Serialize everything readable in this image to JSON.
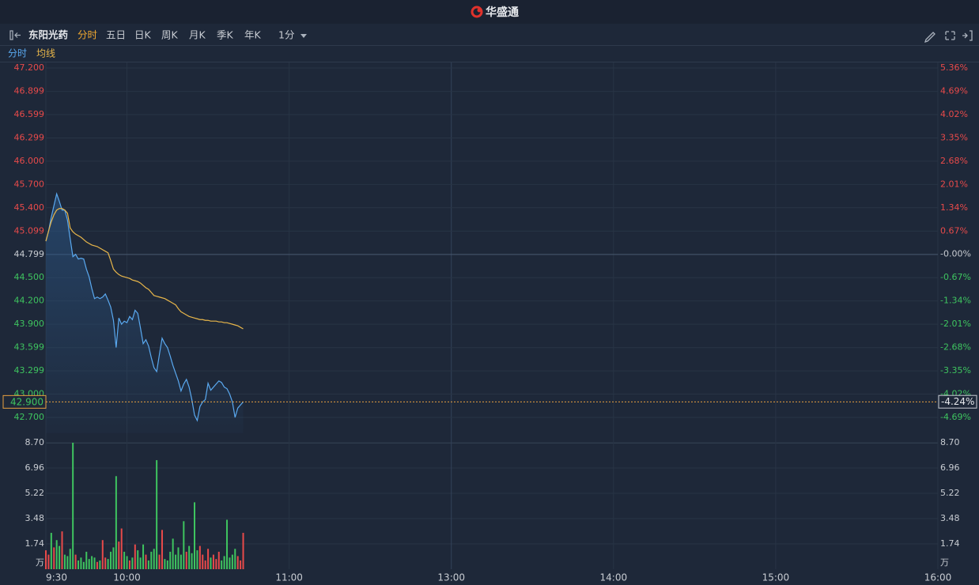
{
  "header": {
    "logo": "华盛通"
  },
  "toolbar": {
    "stock": "东阳光药",
    "tabs": [
      "分时",
      "五日",
      "日K",
      "周K",
      "月K",
      "季K",
      "年K"
    ],
    "interval": "1分"
  },
  "chart_data": [
    {
      "type": "line",
      "x": [
        0,
        1,
        2,
        3,
        4,
        5,
        6,
        7,
        8,
        9,
        10,
        11,
        12,
        13,
        14,
        15,
        16,
        17,
        18,
        19,
        20,
        21,
        22,
        23,
        24,
        25,
        26,
        27,
        28,
        29,
        30,
        31,
        32,
        33,
        34,
        35,
        36,
        37,
        38,
        39,
        40,
        41,
        42,
        43,
        44,
        45,
        46,
        47,
        48,
        49,
        50,
        51,
        52,
        53,
        54,
        55,
        56,
        57,
        58,
        59,
        60,
        61,
        62,
        63,
        64,
        65,
        66,
        67,
        68,
        69,
        70,
        71,
        72,
        73
      ],
      "series": [
        {
          "name": "分时",
          "color": "#5aa9f0",
          "values": [
            44.97,
            45.1,
            45.28,
            45.43,
            45.58,
            45.48,
            45.37,
            45.37,
            45.24,
            45.0,
            44.77,
            44.8,
            44.74,
            44.75,
            44.74,
            44.61,
            44.51,
            44.36,
            44.23,
            44.25,
            44.23,
            44.25,
            44.29,
            44.21,
            44.12,
            43.95,
            43.6,
            43.98,
            43.9,
            43.94,
            43.92,
            44.0,
            43.96,
            44.08,
            44.04,
            43.85,
            43.65,
            43.7,
            43.62,
            43.47,
            43.34,
            43.29,
            43.51,
            43.72,
            43.65,
            43.6,
            43.49,
            43.37,
            43.27,
            43.17,
            43.04,
            43.13,
            43.19,
            43.09,
            42.93,
            42.73,
            42.66,
            42.84,
            42.9,
            42.93,
            43.14,
            43.05,
            43.09,
            43.13,
            43.17,
            43.15,
            43.09,
            43.07,
            43.0,
            42.9,
            42.7,
            42.82,
            42.86,
            42.9
          ]
        },
        {
          "name": "均线",
          "color": "#e8b64a",
          "values": [
            44.97,
            45.1,
            45.22,
            45.31,
            45.37,
            45.39,
            45.39,
            45.37,
            45.33,
            45.14,
            45.09,
            45.06,
            45.04,
            45.02,
            44.99,
            44.96,
            44.94,
            44.92,
            44.91,
            44.9,
            44.88,
            44.86,
            44.84,
            44.82,
            44.72,
            44.61,
            44.57,
            44.54,
            44.52,
            44.51,
            44.5,
            44.49,
            44.47,
            44.46,
            44.45,
            44.43,
            44.4,
            44.37,
            44.35,
            44.31,
            44.27,
            44.26,
            44.25,
            44.24,
            44.23,
            44.21,
            44.19,
            44.17,
            44.15,
            44.1,
            44.06,
            44.04,
            44.02,
            44.0,
            43.99,
            43.98,
            43.97,
            43.96,
            43.96,
            43.95,
            43.95,
            43.94,
            43.94,
            43.94,
            43.93,
            43.93,
            43.92,
            43.92,
            43.91,
            43.9,
            43.89,
            43.88,
            43.86,
            43.84
          ]
        }
      ],
      "xlim": [
        0,
        330
      ],
      "ylim": [
        42.7,
        47.2
      ],
      "yticks": [
        {
          "value": 47.2,
          "label": "47.200"
        },
        {
          "value": 46.899,
          "label": "46.899"
        },
        {
          "value": 46.599,
          "label": "46.599"
        },
        {
          "value": 46.299,
          "label": "46.299"
        },
        {
          "value": 46.0,
          "label": "46.000"
        },
        {
          "value": 45.7,
          "label": "45.700"
        },
        {
          "value": 45.4,
          "label": "45.400"
        },
        {
          "value": 45.099,
          "label": "45.099"
        },
        {
          "value": 44.799,
          "label": "44.799"
        },
        {
          "value": 44.5,
          "label": "44.500"
        },
        {
          "value": 44.2,
          "label": "44.200"
        },
        {
          "value": 43.9,
          "label": "43.900"
        },
        {
          "value": 43.599,
          "label": "43.599"
        },
        {
          "value": 43.299,
          "label": "43.299"
        },
        {
          "value": 43.0,
          "label": "43.000"
        },
        {
          "value": 42.7,
          "label": "42.700"
        }
      ],
      "y2lim": [
        -4.69,
        5.36
      ],
      "y2ticks": [
        {
          "value": 5.36,
          "label": "5.36%"
        },
        {
          "value": 4.69,
          "label": "4.69%"
        },
        {
          "value": 4.02,
          "label": "4.02%"
        },
        {
          "value": 3.35,
          "label": "3.35%"
        },
        {
          "value": 2.68,
          "label": "2.68%"
        },
        {
          "value": 2.01,
          "label": "2.01%"
        },
        {
          "value": 1.34,
          "label": "1.34%"
        },
        {
          "value": 0.67,
          "label": "0.67%"
        },
        {
          "value": 0,
          "label": "-0.00%"
        },
        {
          "value": -0.67,
          "label": "-0.67%"
        },
        {
          "value": -1.34,
          "label": "-1.34%"
        },
        {
          "value": -2.01,
          "label": "-2.01%"
        },
        {
          "value": -2.68,
          "label": "-2.68%"
        },
        {
          "value": -3.35,
          "label": "-3.35%"
        },
        {
          "value": -4.02,
          "label": "-4.02%"
        },
        {
          "value": -4.69,
          "label": "-4.69%"
        }
      ],
      "base_price": 44.799,
      "last_price": {
        "value": 42.9,
        "label": "42.900"
      },
      "last_change": {
        "value": -4.24,
        "label": "-4.24%"
      },
      "up_color": "#e84a4a",
      "down_color": "#3ec45f",
      "flat_color": "#c8ccd2",
      "grid": true
    },
    {
      "type": "bar",
      "x": [
        0,
        1,
        2,
        3,
        4,
        5,
        6,
        7,
        8,
        9,
        10,
        11,
        12,
        13,
        14,
        15,
        16,
        17,
        18,
        19,
        20,
        21,
        22,
        23,
        24,
        25,
        26,
        27,
        28,
        29,
        30,
        31,
        32,
        33,
        34,
        35,
        36,
        37,
        38,
        39,
        40,
        41,
        42,
        43,
        44,
        45,
        46,
        47,
        48,
        49,
        50,
        51,
        52,
        53,
        54,
        55,
        56,
        57,
        58,
        59,
        60,
        61,
        62,
        63,
        64,
        65,
        66,
        67,
        68,
        69,
        70,
        71,
        72,
        73
      ],
      "values": [
        1.3,
        1.0,
        2.5,
        1.5,
        2.0,
        1.6,
        2.6,
        1.0,
        0.9,
        1.4,
        8.7,
        1.0,
        0.6,
        0.8,
        0.5,
        1.2,
        0.7,
        0.9,
        0.8,
        0.5,
        0.6,
        2.0,
        0.8,
        0.7,
        1.2,
        1.5,
        6.4,
        1.9,
        2.8,
        1.2,
        0.9,
        0.6,
        0.8,
        1.7,
        1.3,
        0.8,
        1.7,
        1.0,
        0.6,
        1.2,
        1.4,
        7.5,
        1.0,
        2.7,
        0.7,
        0.6,
        1.2,
        2.1,
        1.0,
        1.5,
        1.0,
        3.3,
        1.2,
        1.6,
        1.1,
        4.6,
        1.3,
        1.6,
        1.0,
        0.6,
        1.4,
        0.8,
        1.0,
        0.7,
        1.2,
        0.6,
        0.9,
        3.4,
        0.8,
        1.0,
        1.4,
        0.9,
        0.6,
        2.5
      ],
      "bar_colors": [
        "#e84a4a",
        "#e84a4a",
        "#3ec45f",
        "#e84a4a",
        "#3ec45f",
        "#3ec45f",
        "#e84a4a",
        "#3ec45f",
        "#3ec45f",
        "#3ec45f",
        "#3ec45f",
        "#e84a4a",
        "#3ec45f",
        "#3ec45f",
        "#3ec45f",
        "#3ec45f",
        "#3ec45f",
        "#3ec45f",
        "#3ec45f",
        "#e84a4a",
        "#3ec45f",
        "#e84a4a",
        "#e84a4a",
        "#3ec45f",
        "#3ec45f",
        "#3ec45f",
        "#3ec45f",
        "#e84a4a",
        "#e84a4a",
        "#3ec45f",
        "#3ec45f",
        "#e84a4a",
        "#3ec45f",
        "#e84a4a",
        "#3ec45f",
        "#3ec45f",
        "#3ec45f",
        "#e84a4a",
        "#3ec45f",
        "#3ec45f",
        "#3ec45f",
        "#3ec45f",
        "#e84a4a",
        "#e84a4a",
        "#3ec45f",
        "#3ec45f",
        "#3ec45f",
        "#3ec45f",
        "#3ec45f",
        "#3ec45f",
        "#3ec45f",
        "#3ec45f",
        "#e84a4a",
        "#3ec45f",
        "#3ec45f",
        "#3ec45f",
        "#3ec45f",
        "#e84a4a",
        "#e84a4a",
        "#e84a4a",
        "#e84a4a",
        "#3ec45f",
        "#e84a4a",
        "#e84a4a",
        "#e84a4a",
        "#3ec45f",
        "#3ec45f",
        "#3ec45f",
        "#3ec45f",
        "#3ec45f",
        "#3ec45f",
        "#e84a4a",
        "#e84a4a",
        "#e84a4a"
      ],
      "xlim": [
        0,
        330
      ],
      "xticks": [
        {
          "value": 0,
          "label": "9:30"
        },
        {
          "value": 30,
          "label": "10:00"
        },
        {
          "value": 90,
          "label": "11:00"
        },
        {
          "value": 150,
          "label": "13:00"
        },
        {
          "value": 210,
          "label": "14:00"
        },
        {
          "value": 270,
          "label": "15:00"
        },
        {
          "value": 330,
          "label": "16:00"
        }
      ],
      "ylim": [
        0,
        8.7
      ],
      "yticks": [
        1.74,
        3.48,
        5.22,
        6.96,
        {
          "value": 8.7,
          "label": "8.70"
        }
      ],
      "unit": "万"
    }
  ]
}
